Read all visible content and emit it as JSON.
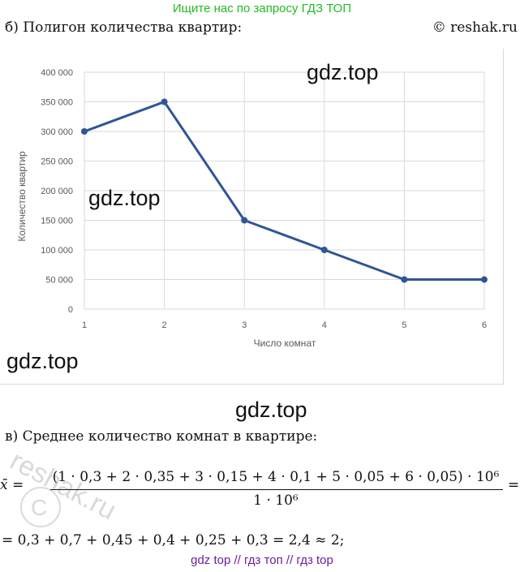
{
  "banner": "Ищите нас по запросу ГДЗ ТОП",
  "heading": "б) Полигон количества квартир:",
  "copyright": "© reshak.ru",
  "watermarks": [
    "gdz.top",
    "gdz.top",
    "gdz.top",
    "gdz.top"
  ],
  "chart_data": {
    "type": "line",
    "x": [
      1,
      2,
      3,
      4,
      5,
      6
    ],
    "series": [
      {
        "values": [
          300000,
          350000,
          150000,
          100000,
          50000,
          50000
        ]
      }
    ],
    "title": "",
    "xlabel": "Число комнат",
    "ylabel": "Количество квартир",
    "ylim": [
      0,
      400000
    ],
    "yticks": [
      "0",
      "50 000",
      "100 000",
      "150 000",
      "200 000",
      "250 000",
      "300 000",
      "350 000",
      "400 000"
    ],
    "xticks": [
      "1",
      "2",
      "3",
      "4",
      "5",
      "6"
    ],
    "grid": true,
    "colors": {
      "line": "#2f5596",
      "grid": "#d9d9d9",
      "axis_text": "#595959"
    }
  },
  "section_b": "в) Среднее количество комнат в квартире:",
  "formula": {
    "lhs": "x̄ =",
    "numerator": "(1 · 0,3 + 2 · 0,35 + 3 · 0,15 + 4 · 0,1 + 5 · 0,05 + 6 · 0,05) · 10⁶",
    "denominator": "1 · 10⁶",
    "rhs": "="
  },
  "result": "= 0,3 + 0,7 + 0,45 + 0,4 + 0,25 + 0,3 = 2,4 ≈ 2;",
  "footer": "gdz top  //  гдз топ  //  гдз top",
  "stamp_text": "reshak.ru"
}
